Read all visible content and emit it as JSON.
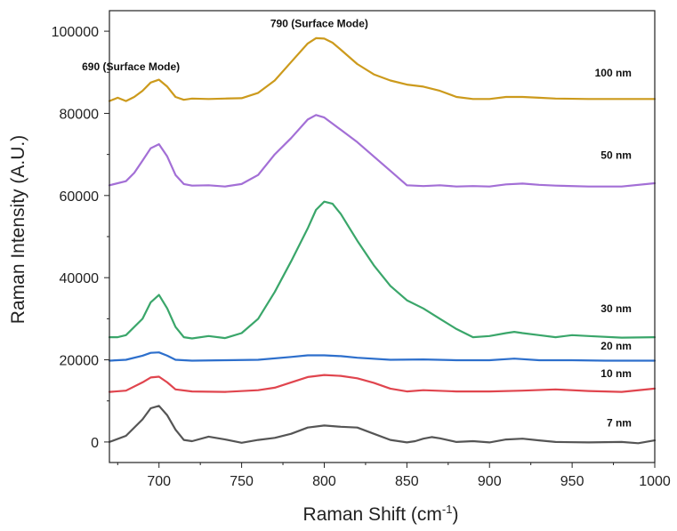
{
  "chart_data": {
    "type": "line",
    "xlabel": "Raman Shift (cm",
    "xlabel_superscript": "-1",
    "xlabel_suffix": ")",
    "ylabel": "Raman Intensity (A.U.)",
    "xlim": [
      670,
      1000
    ],
    "ylim": [
      -5000,
      105000
    ],
    "xticks": [
      700,
      750,
      800,
      850,
      900,
      950,
      1000
    ],
    "yticks": [
      0,
      20000,
      40000,
      60000,
      80000,
      100000
    ],
    "grid": false,
    "annotations": [
      {
        "text": "690 (Surface Mode)",
        "x": 683,
        "y": 90500
      },
      {
        "text": "790 (Surface Mode)",
        "x": 797,
        "y": 101000
      }
    ],
    "series": [
      {
        "name": "7 nm",
        "color": "#555555",
        "label_x": 986,
        "label_y": 3800,
        "x": [
          670,
          680,
          690,
          695,
          700,
          705,
          710,
          715,
          720,
          730,
          740,
          750,
          760,
          770,
          780,
          790,
          800,
          810,
          820,
          830,
          840,
          850,
          855,
          860,
          865,
          870,
          880,
          890,
          900,
          910,
          920,
          930,
          940,
          960,
          980,
          990,
          1000
        ],
        "y": [
          0,
          1500,
          5500,
          8200,
          8800,
          6500,
          3000,
          500,
          200,
          1300,
          600,
          -200,
          500,
          1000,
          2000,
          3500,
          4000,
          3700,
          3500,
          2000,
          500,
          -100,
          200,
          800,
          1200,
          900,
          0,
          200,
          -100,
          600,
          800,
          400,
          0,
          -100,
          0,
          -300,
          400
        ]
      },
      {
        "name": "10 nm",
        "color": "#e0454e",
        "label_x": 986,
        "label_y": 15800,
        "x": [
          670,
          680,
          690,
          695,
          700,
          705,
          710,
          720,
          740,
          760,
          770,
          780,
          790,
          800,
          810,
          820,
          830,
          840,
          850,
          860,
          880,
          900,
          920,
          940,
          960,
          980,
          1000
        ],
        "y": [
          12200,
          12500,
          14500,
          15700,
          15900,
          14500,
          12800,
          12300,
          12200,
          12600,
          13200,
          14500,
          15800,
          16300,
          16100,
          15500,
          14400,
          13000,
          12300,
          12600,
          12300,
          12300,
          12500,
          12800,
          12400,
          12200,
          13000
        ]
      },
      {
        "name": "20 nm",
        "color": "#2d6fcc",
        "label_x": 986,
        "label_y": 22500,
        "x": [
          670,
          680,
          690,
          695,
          700,
          705,
          710,
          720,
          740,
          760,
          780,
          790,
          800,
          810,
          820,
          840,
          860,
          880,
          900,
          915,
          930,
          950,
          970,
          1000
        ],
        "y": [
          19800,
          20000,
          21000,
          21700,
          21800,
          21000,
          20000,
          19800,
          19900,
          20000,
          20700,
          21100,
          21100,
          20900,
          20500,
          20000,
          20100,
          19900,
          19900,
          20300,
          19900,
          19900,
          19800,
          19800
        ]
      },
      {
        "name": "30 nm",
        "color": "#3aa66a",
        "label_x": 986,
        "label_y": 31600,
        "x": [
          670,
          675,
          680,
          690,
          695,
          700,
          705,
          710,
          715,
          720,
          730,
          740,
          750,
          760,
          770,
          780,
          790,
          795,
          800,
          805,
          810,
          820,
          830,
          840,
          850,
          860,
          870,
          880,
          890,
          900,
          910,
          915,
          920,
          930,
          940,
          950,
          960,
          980,
          1000
        ],
        "y": [
          25500,
          25500,
          26000,
          30000,
          34000,
          35800,
          32500,
          28000,
          25500,
          25200,
          25800,
          25300,
          26500,
          30000,
          36500,
          44000,
          52000,
          56500,
          58500,
          58000,
          55500,
          49000,
          43000,
          38000,
          34500,
          32500,
          30000,
          27500,
          25500,
          25800,
          26500,
          26800,
          26500,
          26000,
          25500,
          26000,
          25800,
          25400,
          25500
        ]
      },
      {
        "name": "50 nm",
        "color": "#a36fd6",
        "label_x": 986,
        "label_y": 69000,
        "x": [
          670,
          680,
          685,
          690,
          695,
          700,
          705,
          710,
          715,
          720,
          730,
          740,
          750,
          760,
          770,
          780,
          790,
          795,
          800,
          805,
          810,
          820,
          830,
          840,
          850,
          860,
          870,
          880,
          890,
          900,
          910,
          920,
          930,
          940,
          960,
          980,
          1000
        ],
        "y": [
          62500,
          63500,
          65500,
          68500,
          71500,
          72500,
          69500,
          65000,
          62800,
          62400,
          62500,
          62200,
          62800,
          65000,
          70000,
          74000,
          78500,
          79600,
          79000,
          77500,
          76000,
          73000,
          69500,
          66000,
          62500,
          62300,
          62500,
          62200,
          62300,
          62200,
          62700,
          62900,
          62600,
          62400,
          62200,
          62200,
          63000
        ]
      },
      {
        "name": "100 nm",
        "color": "#cc9a1c",
        "label_x": 986,
        "label_y": 89000,
        "x": [
          670,
          675,
          680,
          685,
          690,
          695,
          700,
          705,
          710,
          715,
          720,
          730,
          740,
          750,
          760,
          770,
          780,
          790,
          795,
          800,
          805,
          810,
          820,
          830,
          840,
          850,
          860,
          870,
          880,
          890,
          900,
          910,
          920,
          930,
          940,
          960,
          980,
          1000
        ],
        "y": [
          83000,
          83800,
          83000,
          84000,
          85500,
          87500,
          88200,
          86500,
          84000,
          83300,
          83600,
          83500,
          83600,
          83700,
          85000,
          88000,
          92500,
          97000,
          98300,
          98200,
          97200,
          95500,
          92000,
          89500,
          88000,
          87000,
          86500,
          85500,
          84000,
          83500,
          83500,
          84000,
          84000,
          83800,
          83600,
          83500,
          83500,
          83500
        ]
      }
    ]
  }
}
